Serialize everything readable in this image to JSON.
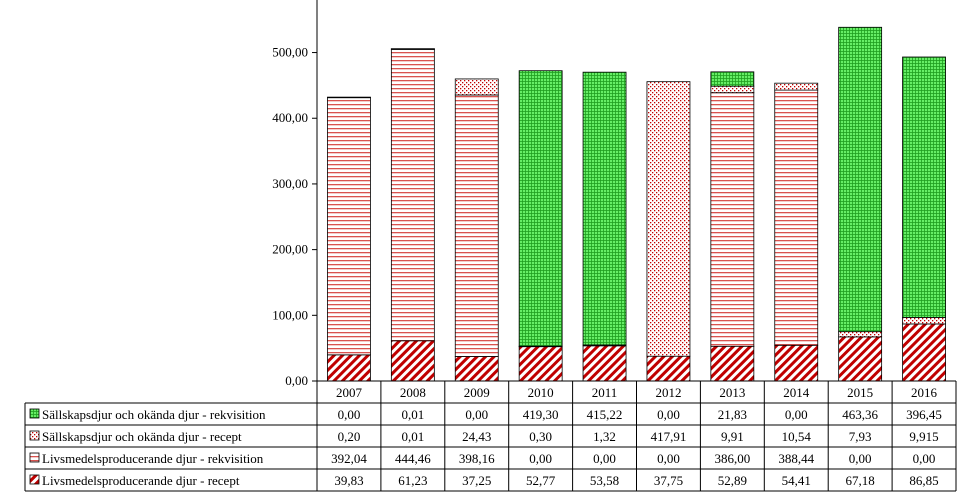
{
  "chart_data": {
    "type": "bar",
    "stacked": true,
    "categories": [
      "2007",
      "2008",
      "2009",
      "2010",
      "2011",
      "2012",
      "2013",
      "2014",
      "2015",
      "2016"
    ],
    "y_tick_labels": [
      "0,00",
      "100,00",
      "200,00",
      "300,00",
      "400,00",
      "500,00"
    ],
    "ylim": [
      0,
      580
    ],
    "grid": false,
    "legend": "data-table-below",
    "series": [
      {
        "name": "Livsmedelsproducerande djur - recept",
        "values": [
          39.83,
          61.23,
          37.25,
          52.77,
          53.58,
          37.75,
          52.89,
          54.41,
          67.18,
          86.85
        ],
        "labels": [
          "39,83",
          "61,23",
          "37,25",
          "52,77",
          "53,58",
          "37,75",
          "52,89",
          "54,41",
          "67,18",
          "86,85"
        ],
        "color": "#c00000",
        "pattern": "diagonal"
      },
      {
        "name": "Livsmedelsproducerande djur - rekvisition",
        "values": [
          392.04,
          444.46,
          398.16,
          0,
          0,
          0,
          386.0,
          388.44,
          0,
          0
        ],
        "labels": [
          "392,04",
          "444,46",
          "398,16",
          "0,00",
          "0,00",
          "0,00",
          "386,00",
          "388,44",
          "0,00",
          "0,00"
        ],
        "color": "#d9534f",
        "pattern": "horizontal"
      },
      {
        "name": "Sällskapsdjur och okända djur - recept",
        "values": [
          0.2,
          0.01,
          24.43,
          0.3,
          1.32,
          417.91,
          9.91,
          10.54,
          7.93,
          9.915
        ],
        "labels": [
          "0,20",
          "0,01",
          "24,43",
          "0,30",
          "1,32",
          "417,91",
          "9,91",
          "10,54",
          "7,93",
          "9,915"
        ],
        "color": "#c00000",
        "pattern": "dots"
      },
      {
        "name": "Sällskapsdjur och okända djur - rekvisition",
        "values": [
          0,
          0.01,
          0,
          419.3,
          415.22,
          0,
          21.83,
          0,
          463.36,
          396.45
        ],
        "labels": [
          "0,00",
          "0,01",
          "0,00",
          "419,30",
          "415,22",
          "0,00",
          "21,83",
          "0,00",
          "463,36",
          "396,45"
        ],
        "color": "#33cc33",
        "pattern": "grid"
      }
    ],
    "table_row_order": [
      3,
      2,
      1,
      0
    ]
  }
}
